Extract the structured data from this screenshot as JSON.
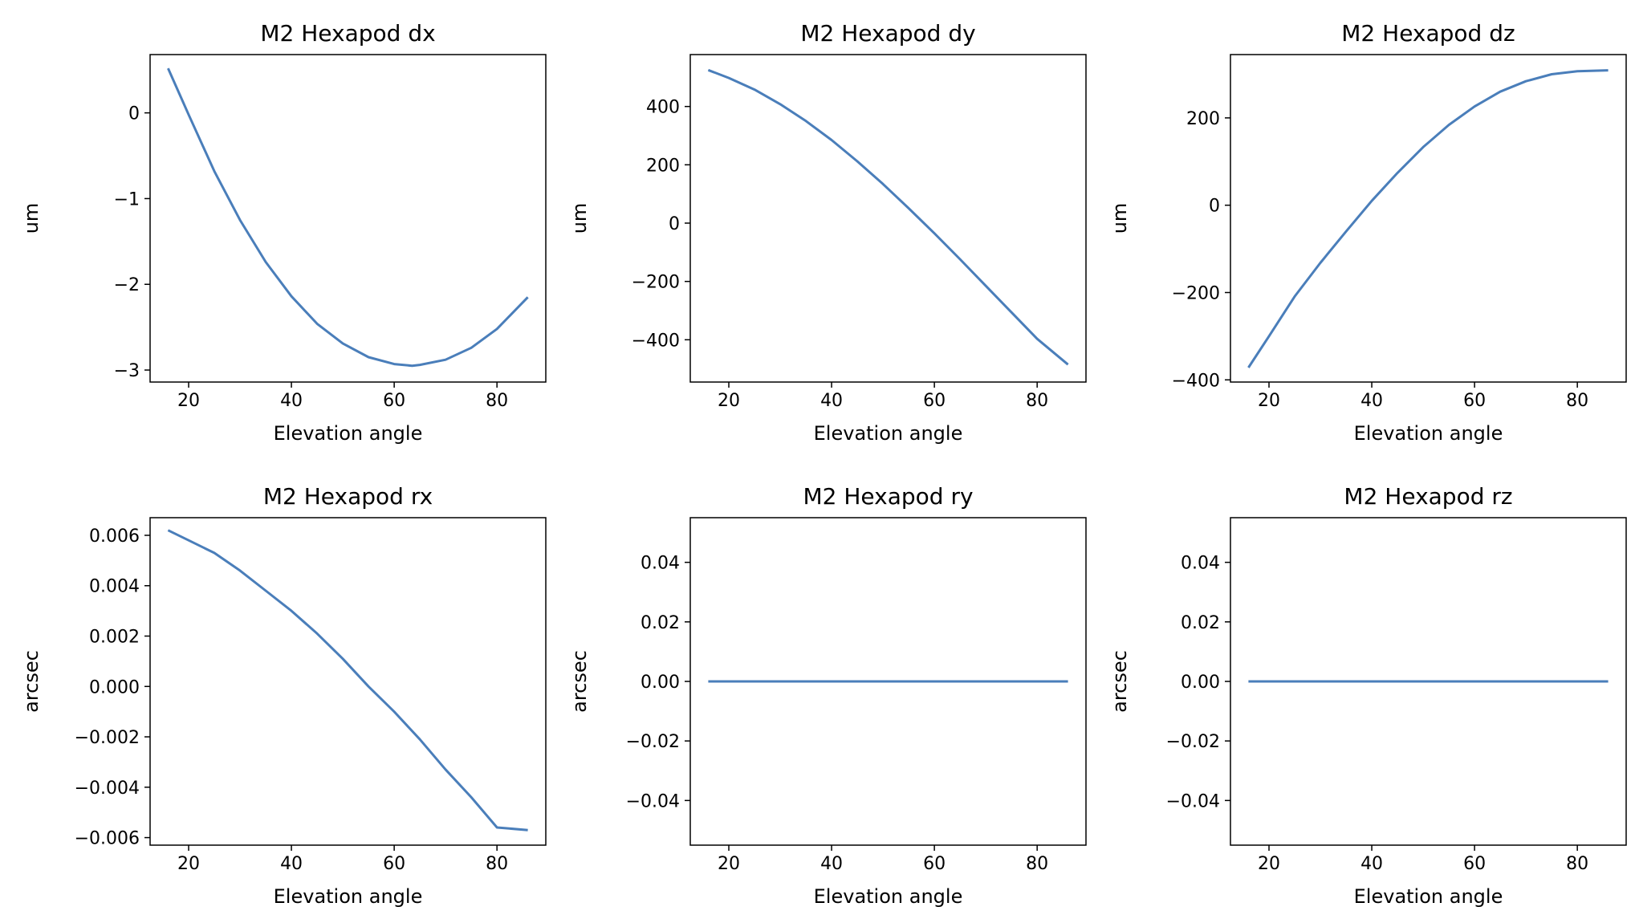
{
  "chart_data": [
    {
      "type": "line",
      "title": "M2 Hexapod dx",
      "xlabel": "Elevation angle",
      "ylabel": "um",
      "xlim": [
        12.5,
        89.5
      ],
      "ylim": [
        -3.14,
        0.68
      ],
      "xticks": [
        20,
        40,
        60,
        80
      ],
      "xtick_labels": [
        "20",
        "40",
        "60",
        "80"
      ],
      "yticks": [
        0,
        -1,
        -2,
        -3
      ],
      "ytick_labels": [
        "0",
        "−1",
        "−2",
        "−3"
      ],
      "series": [
        {
          "x": [
            16,
            20,
            25,
            30,
            35,
            40,
            45,
            50,
            55,
            60,
            63.5,
            65,
            70,
            75,
            80,
            86
          ],
          "y": [
            0.52,
            -0.02,
            -0.68,
            -1.25,
            -1.74,
            -2.14,
            -2.46,
            -2.69,
            -2.85,
            -2.93,
            -2.95,
            -2.94,
            -2.88,
            -2.74,
            -2.52,
            -2.15
          ]
        }
      ]
    },
    {
      "type": "line",
      "title": "M2 Hexapod dy",
      "xlabel": "Elevation angle",
      "ylabel": "um",
      "xlim": [
        12.5,
        89.5
      ],
      "ylim": [
        -545,
        578
      ],
      "xticks": [
        20,
        40,
        60,
        80
      ],
      "xtick_labels": [
        "20",
        "40",
        "60",
        "80"
      ],
      "yticks": [
        400,
        200,
        0,
        -200,
        -400
      ],
      "ytick_labels": [
        "400",
        "200",
        "0",
        "−200",
        "−400"
      ],
      "series": [
        {
          "x": [
            16,
            20,
            25,
            30,
            35,
            40,
            45,
            50,
            55,
            60,
            65,
            70,
            75,
            80,
            86
          ],
          "y": [
            525,
            498,
            458,
            408,
            350,
            285,
            212,
            134,
            51,
            -35,
            -124,
            -215,
            -306,
            -397,
            -485
          ]
        }
      ]
    },
    {
      "type": "line",
      "title": "M2 Hexapod dz",
      "xlabel": "Elevation angle",
      "ylabel": "um",
      "xlim": [
        12.5,
        89.5
      ],
      "ylim": [
        -405,
        345
      ],
      "xticks": [
        20,
        40,
        60,
        80
      ],
      "xtick_labels": [
        "20",
        "40",
        "60",
        "80"
      ],
      "yticks": [
        200,
        0,
        -200,
        -400
      ],
      "ytick_labels": [
        "200",
        "0",
        "−200",
        "−400"
      ],
      "series": [
        {
          "x": [
            16,
            20,
            25,
            30,
            35,
            40,
            45,
            50,
            55,
            60,
            65,
            70,
            75,
            80,
            86
          ],
          "y": [
            -372,
            -300,
            -209,
            -132,
            -60,
            10,
            74,
            133,
            184,
            226,
            260,
            284,
            300,
            307,
            309
          ]
        }
      ]
    },
    {
      "type": "line",
      "title": "M2 Hexapod rx",
      "xlabel": "Elevation angle",
      "ylabel": "arcsec",
      "xlim": [
        12.5,
        89.5
      ],
      "ylim": [
        -0.0063,
        0.0067
      ],
      "xticks": [
        20,
        40,
        60,
        80
      ],
      "xtick_labels": [
        "20",
        "40",
        "60",
        "80"
      ],
      "yticks": [
        0.006,
        0.004,
        0.002,
        0.0,
        -0.002,
        -0.004,
        -0.006
      ],
      "ytick_labels": [
        "0.006",
        "0.004",
        "0.002",
        "0.000",
        "−0.002",
        "−0.004",
        "−0.006"
      ],
      "series": [
        {
          "x": [
            16,
            20,
            25,
            30,
            35,
            40,
            45,
            50,
            55,
            60,
            65,
            70,
            75,
            80,
            86
          ],
          "y": [
            0.0062,
            0.0058,
            0.0053,
            0.0046,
            0.0038,
            0.003,
            0.0021,
            0.0011,
            0.0,
            -0.001,
            -0.0021,
            -0.0033,
            -0.0044,
            -0.0056,
            -0.0057
          ]
        }
      ]
    },
    {
      "type": "line",
      "title": "M2 Hexapod ry",
      "xlabel": "Elevation angle",
      "ylabel": "arcsec",
      "xlim": [
        12.5,
        89.5
      ],
      "ylim": [
        -0.055,
        0.055
      ],
      "xticks": [
        20,
        40,
        60,
        80
      ],
      "xtick_labels": [
        "20",
        "40",
        "60",
        "80"
      ],
      "yticks": [
        0.04,
        0.02,
        0.0,
        -0.02,
        -0.04
      ],
      "ytick_labels": [
        "0.04",
        "0.02",
        "0.00",
        "−0.02",
        "−0.04"
      ],
      "series": [
        {
          "x": [
            16,
            86
          ],
          "y": [
            0.0,
            0.0
          ]
        }
      ]
    },
    {
      "type": "line",
      "title": "M2 Hexapod rz",
      "xlabel": "Elevation angle",
      "ylabel": "arcsec",
      "xlim": [
        12.5,
        89.5
      ],
      "ylim": [
        -0.055,
        0.055
      ],
      "xticks": [
        20,
        40,
        60,
        80
      ],
      "xtick_labels": [
        "20",
        "40",
        "60",
        "80"
      ],
      "yticks": [
        0.04,
        0.02,
        0.0,
        -0.02,
        -0.04
      ],
      "ytick_labels": [
        "0.04",
        "0.02",
        "0.00",
        "−0.02",
        "−0.04"
      ],
      "series": [
        {
          "x": [
            16,
            86
          ],
          "y": [
            0.0,
            0.0
          ]
        }
      ]
    }
  ],
  "colors": {
    "line": "#4a7eba",
    "background": "#ffffff"
  }
}
